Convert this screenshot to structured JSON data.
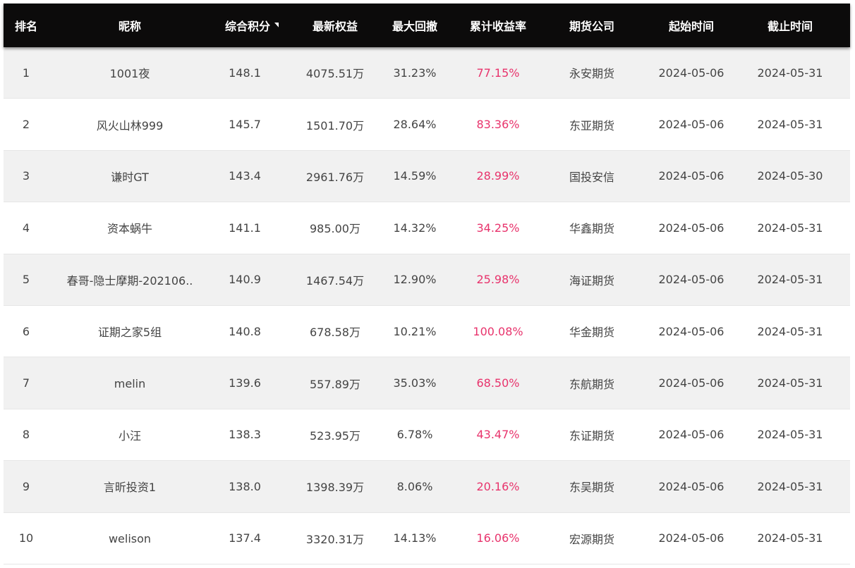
{
  "header": {
    "rank": "排名",
    "nickname": "昵称",
    "score": "综合积分",
    "equity": "最新权益",
    "drawdown": "最大回撤",
    "return": "累计收益率",
    "company": "期货公司",
    "start": "起始时间",
    "end": "截止时间",
    "sort_icon": "caret-down-icon"
  },
  "colors": {
    "header_bg": "#0c0b0b",
    "return_text": "#e8336c",
    "row_alt": "#f1f1f1"
  },
  "rows": [
    {
      "rank": "1",
      "nickname": "1001夜",
      "score": "148.1",
      "equity": "4075.51万",
      "drawdown": "31.23%",
      "return": "77.15%",
      "company": "永安期货",
      "start": "2024-05-06",
      "end": "2024-05-31"
    },
    {
      "rank": "2",
      "nickname": "风火山林999",
      "score": "145.7",
      "equity": "1501.70万",
      "drawdown": "28.64%",
      "return": "83.36%",
      "company": "东亚期货",
      "start": "2024-05-06",
      "end": "2024-05-31"
    },
    {
      "rank": "3",
      "nickname": "谦时GT",
      "score": "143.4",
      "equity": "2961.76万",
      "drawdown": "14.59%",
      "return": "28.99%",
      "company": "国投安信",
      "start": "2024-05-06",
      "end": "2024-05-30"
    },
    {
      "rank": "4",
      "nickname": "资本蜗牛",
      "score": "141.1",
      "equity": "985.00万",
      "drawdown": "14.32%",
      "return": "34.25%",
      "company": "华鑫期货",
      "start": "2024-05-06",
      "end": "2024-05-31"
    },
    {
      "rank": "5",
      "nickname": "春哥-隐士摩期-202106..",
      "score": "140.9",
      "equity": "1467.54万",
      "drawdown": "12.90%",
      "return": "25.98%",
      "company": "海证期货",
      "start": "2024-05-06",
      "end": "2024-05-31"
    },
    {
      "rank": "6",
      "nickname": "证期之家5组",
      "score": "140.8",
      "equity": "678.58万",
      "drawdown": "10.21%",
      "return": "100.08%",
      "company": "华金期货",
      "start": "2024-05-06",
      "end": "2024-05-31"
    },
    {
      "rank": "7",
      "nickname": "melin",
      "score": "139.6",
      "equity": "557.89万",
      "drawdown": "35.03%",
      "return": "68.50%",
      "company": "东航期货",
      "start": "2024-05-06",
      "end": "2024-05-31"
    },
    {
      "rank": "8",
      "nickname": "小汪",
      "score": "138.3",
      "equity": "523.95万",
      "drawdown": "6.78%",
      "return": "43.47%",
      "company": "东证期货",
      "start": "2024-05-06",
      "end": "2024-05-31"
    },
    {
      "rank": "9",
      "nickname": "言昕投资1",
      "score": "138.0",
      "equity": "1398.39万",
      "drawdown": "8.06%",
      "return": "20.16%",
      "company": "东吴期货",
      "start": "2024-05-06",
      "end": "2024-05-31"
    },
    {
      "rank": "10",
      "nickname": "welison",
      "score": "137.4",
      "equity": "3320.31万",
      "drawdown": "14.13%",
      "return": "16.06%",
      "company": "宏源期货",
      "start": "2024-05-06",
      "end": "2024-05-31"
    }
  ]
}
